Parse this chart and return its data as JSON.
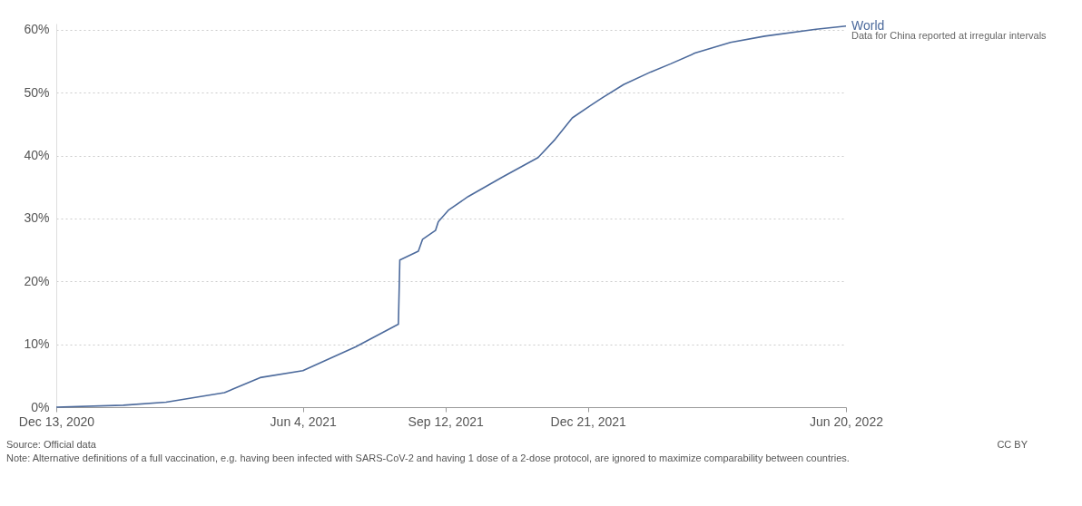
{
  "chart_data": {
    "type": "line",
    "x": [
      "2020-12-13",
      "2021-01-29",
      "2021-02-28",
      "2021-04-10",
      "2021-05-05",
      "2021-06-04",
      "2021-07-11",
      "2021-08-10",
      "2021-08-11",
      "2021-08-24",
      "2021-08-27",
      "2021-09-05",
      "2021-09-07",
      "2021-09-14",
      "2021-09-28",
      "2021-10-22",
      "2021-11-16",
      "2021-11-28",
      "2021-12-04",
      "2021-12-10",
      "2021-12-23",
      "2021-12-31",
      "2022-01-15",
      "2022-02-03",
      "2022-02-17",
      "2022-03-06",
      "2022-03-31",
      "2022-04-24",
      "2022-05-30",
      "2022-06-20"
    ],
    "series": [
      {
        "name": "World",
        "color": "#4c6a9c",
        "values": [
          0,
          0.3,
          0.8,
          2.3,
          4.7,
          5.8,
          9.6,
          13.2,
          23.4,
          24.8,
          26.7,
          28.1,
          29.5,
          31.3,
          33.5,
          36.6,
          39.7,
          42.6,
          44.3,
          46.0,
          48.0,
          49.2,
          51.3,
          53.3,
          54.6,
          56.3,
          58.0,
          59.0,
          60.1,
          60.6
        ]
      }
    ],
    "xlim": [
      "2020-12-13",
      "2022-06-20"
    ],
    "xticks": [
      {
        "value": "2020-12-13",
        "label": "Dec 13, 2020"
      },
      {
        "value": "2021-06-04",
        "label": "Jun 4, 2021"
      },
      {
        "value": "2021-09-12",
        "label": "Sep 12, 2021"
      },
      {
        "value": "2021-12-21",
        "label": "Dec 21, 2021"
      },
      {
        "value": "2022-06-20",
        "label": "Jun 20, 2022"
      }
    ],
    "ylim": [
      0,
      61
    ],
    "yticks": [
      {
        "value": 0,
        "label": "0%"
      },
      {
        "value": 10,
        "label": "10%"
      },
      {
        "value": 20,
        "label": "20%"
      },
      {
        "value": 30,
        "label": "30%"
      },
      {
        "value": 40,
        "label": "40%"
      },
      {
        "value": 50,
        "label": "50%"
      },
      {
        "value": 60,
        "label": "60%"
      }
    ],
    "grid": "y",
    "line_style": "solid",
    "annotations": [
      "Data for China reported at irregular intervals",
      "Source: Official data",
      "CC BY",
      "Note: Alternative definitions of a full vaccination, e.g. having been infected with SARS-CoV-2 and having 1 dose of a 2-dose protocol, are ignored to maximize comparability between countries."
    ]
  }
}
